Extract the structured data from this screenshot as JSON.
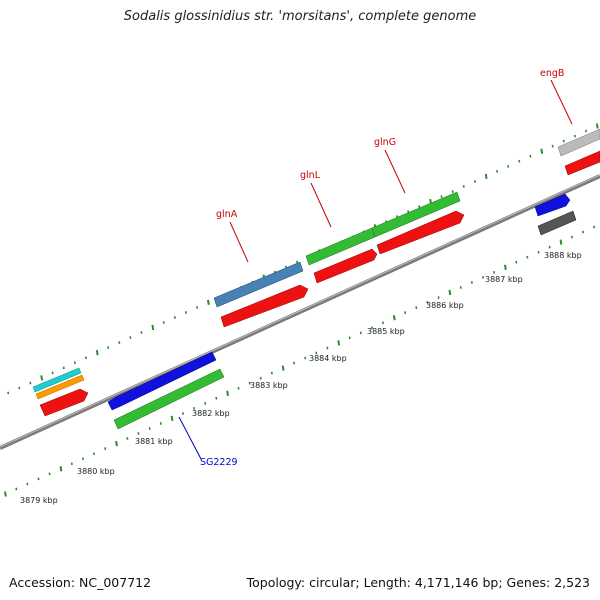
{
  "title": "Sodalis glossinidius str. 'morsitans', complete genome",
  "footer": {
    "accession": "Accession: NC_007712",
    "topology": "Topology: circular; Length: 4,171,146 bp; Genes: 2,523"
  },
  "ticks": [
    "3879 kbp",
    "3880 kbp",
    "3881 kbp",
    "3882 kbp",
    "3883 kbp",
    "3884 kbp",
    "3885 kbp",
    "3886 kbp",
    "3887 kbp",
    "3888 kbp"
  ],
  "gene_labels": [
    {
      "name": "glnA",
      "color": "#cc0000"
    },
    {
      "name": "glnL",
      "color": "#cc0000"
    },
    {
      "name": "glnG",
      "color": "#cc0000"
    },
    {
      "name": "engB",
      "color": "#cc0000"
    },
    {
      "name": "SG2229",
      "color": "#0000cc"
    }
  ],
  "colors": {
    "backbone": "#8a8a8a",
    "tick": "#2e8b2e",
    "cds": "#ee1111",
    "gene_green": "#33bb33",
    "gene_blue": "#1111dd",
    "gene_steel": "#4682b4",
    "gene_cyan": "#22cccc",
    "gene_orange": "#ff9900",
    "gene_gray": "#bbbbbb",
    "gene_dark": "#555555"
  }
}
